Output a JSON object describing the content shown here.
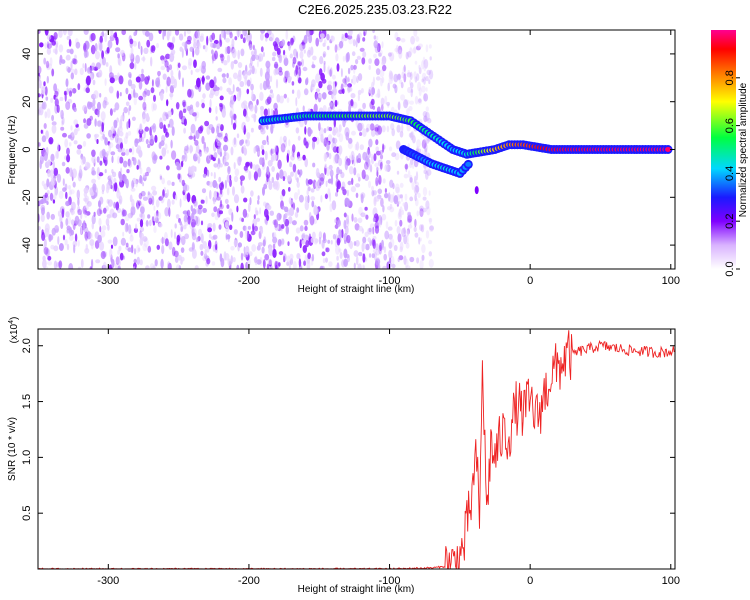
{
  "title": "C2E6.2025.235.03.23.R22",
  "chart_data": [
    {
      "type": "heatmap",
      "xlabel": "Height of straight line (km)",
      "ylabel": "Frequency (Hz)",
      "xlim": [
        -350,
        103
      ],
      "ylim": [
        -50,
        50
      ],
      "xticks": [
        -300,
        -200,
        -100,
        0,
        100
      ],
      "yticks": [
        -40,
        -20,
        0,
        20,
        40
      ],
      "colorbar": {
        "label": "Normalized spectral amplitude",
        "range": [
          0.0,
          1.0
        ],
        "ticks": [
          0.0,
          0.2,
          0.4,
          0.6,
          0.8
        ]
      },
      "features": {
        "noise_region_x": [
          -350,
          -80
        ],
        "main_trace": {
          "x": [
            -190,
            -160,
            -140,
            -120,
            -100,
            -85,
            -75,
            -65,
            -55,
            -45,
            -35,
            -25,
            -15,
            -5,
            5,
            15,
            50,
            100
          ],
          "freq": [
            12,
            14,
            14,
            14,
            14,
            12,
            8,
            4,
            0,
            -2,
            -1,
            0,
            2,
            2,
            1,
            0,
            0,
            0
          ],
          "amp": [
            0.45,
            0.5,
            0.55,
            0.6,
            0.62,
            0.58,
            0.5,
            0.45,
            0.4,
            0.45,
            0.6,
            0.75,
            0.8,
            0.85,
            0.9,
            0.95,
            0.97,
            0.98
          ]
        },
        "lower_branch": {
          "x": [
            -90,
            -80,
            -70,
            -60,
            -50,
            -42
          ],
          "freq": [
            0,
            -3,
            -6,
            -8,
            -10,
            -5
          ],
          "amp": [
            0.3,
            0.35,
            0.4,
            0.45,
            0.4,
            0.35
          ]
        },
        "spike": {
          "x": -38,
          "freq": -17
        }
      }
    },
    {
      "type": "line",
      "xlabel": "Height of straight line (km)",
      "ylabel": "SNR (10 * v/v)",
      "scale_label": "(x10",
      "scale_exponent": "4",
      "scale_suffix": ")",
      "xlim": [
        -350,
        103
      ],
      "ylim": [
        0,
        2.15
      ],
      "xticks": [
        -300,
        -200,
        -100,
        0,
        100
      ],
      "yticks": [
        0.5,
        1.0,
        1.5,
        2.0
      ],
      "color": "#ee2222",
      "series": [
        {
          "name": "SNR",
          "x": [
            -350,
            -300,
            -250,
            -200,
            -150,
            -100,
            -70,
            -55,
            -48,
            -42,
            -38,
            -36,
            -34,
            -31,
            -28,
            -25,
            -20,
            -15,
            -10,
            -5,
            0,
            5,
            10,
            15,
            20,
            25,
            35,
            50,
            70,
            90,
            103
          ],
          "y": [
            0.0,
            0.0,
            0.0,
            0.0,
            0.0,
            0.0,
            0.01,
            0.03,
            0.15,
            0.6,
            1.0,
            0.35,
            1.9,
            0.5,
            1.1,
            1.0,
            1.2,
            1.2,
            1.45,
            1.4,
            1.5,
            1.35,
            1.55,
            1.75,
            1.8,
            1.9,
            1.95,
            2.0,
            1.96,
            1.94,
            1.95
          ]
        }
      ]
    }
  ]
}
